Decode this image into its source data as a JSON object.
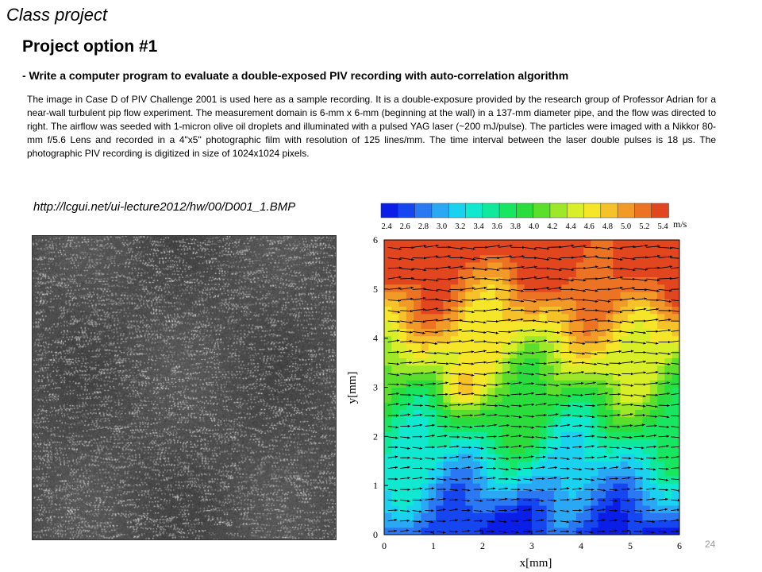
{
  "slide_label": "Class project",
  "project_title": "Project option #1",
  "subtitle": "- Write a computer program to evaluate a double-exposed PIV recording with auto-correlation algorithm",
  "description": "The image in Case D of PIV Challenge 2001 is used here as a sample recording. It is a double-exposure provided by the research group of Professor Adrian for a near-wall turbulent pip flow experiment. The measurement domain is 6-mm x 6-mm (beginning at the wall) in a 137-mm diameter pipe, and the flow was directed to right. The airflow was seeded with 1-micron olive oil droplets and illuminated with a pulsed YAG laser (~200 mJ/pulse). The particles were imaged with a Nikkor 80-mm f/5.6 Lens and recorded in a 4\"x5\" photographic film with resolution of 125 lines/mm. The time interval between the laser double pulses is 18 μs. The photographic PIV recording is digitized in size of 1024x1024 pixels.",
  "image_link": "http://lcgui.net/ui-lecture2012/hw/00/D001_1.BMP",
  "page_number": "24",
  "colors": {
    "colormap": [
      "#0a1ee6",
      "#1646f0",
      "#2a78f2",
      "#2aa8f4",
      "#1ad2f0",
      "#10e8d0",
      "#10e89c",
      "#18e660",
      "#2adc3c",
      "#5cde2c",
      "#9ee82a",
      "#d8ee28",
      "#f6e62a",
      "#f6c22a",
      "#f29a28",
      "#ec7224",
      "#e2461e"
    ]
  },
  "chart_data": {
    "type": "heatmap",
    "colorbar": {
      "ticks": [
        "2.4",
        "2.6",
        "2.8",
        "3.0",
        "3.2",
        "3.4",
        "3.6",
        "3.8",
        "4.0",
        "4.2",
        "4.4",
        "4.6",
        "4.8",
        "5.0",
        "5.2",
        "5.4"
      ],
      "unit": "m/s"
    },
    "xlabel": "x[mm]",
    "ylabel": "y[mm]",
    "xlim": [
      0,
      6
    ],
    "ylim": [
      0,
      6
    ],
    "xticks": [
      "0",
      "1",
      "2",
      "3",
      "4",
      "5",
      "6"
    ],
    "yticks": [
      "0",
      "1",
      "2",
      "3",
      "4",
      "5",
      "6"
    ],
    "field": "velocity magnitude increasing with y from ~2.4 m/s near the wall (y=0) to ~5.4 m/s at y=6; vectors point right"
  }
}
